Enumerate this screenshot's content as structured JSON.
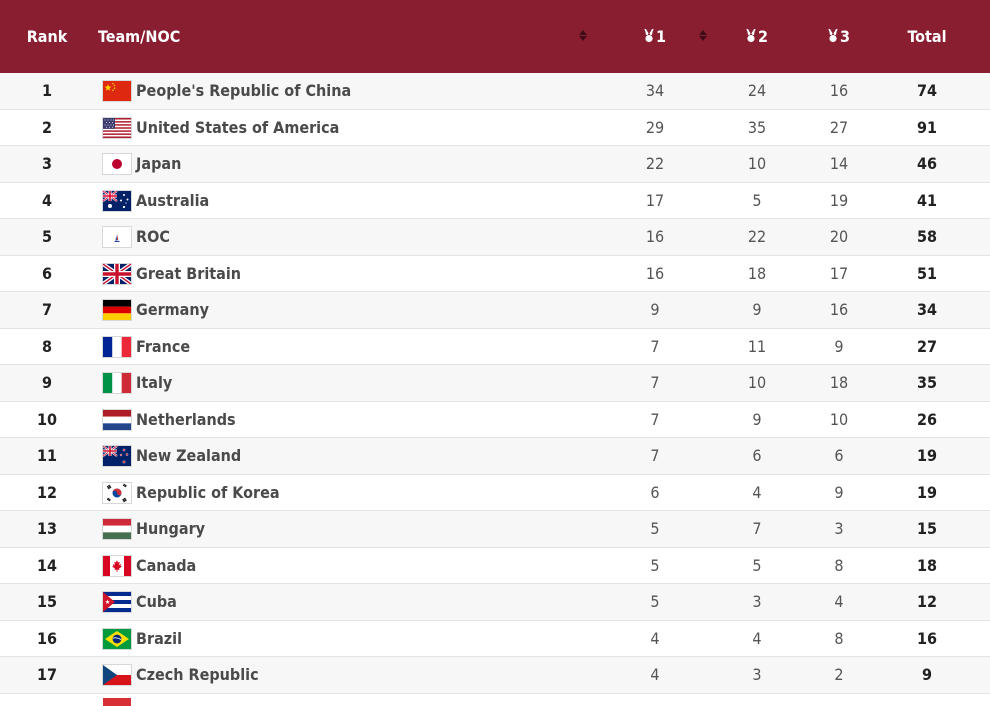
{
  "header": {
    "rank": "Rank",
    "team": "Team/NOC",
    "gold": "1",
    "silver": "2",
    "bronze": "3",
    "total": "Total"
  },
  "rows": [
    {
      "rank": "1",
      "name": "People's Republic of China",
      "gold": "34",
      "silver": "24",
      "bronze": "16",
      "total": "74",
      "flag": "china-flag-icon"
    },
    {
      "rank": "2",
      "name": "United States of America",
      "gold": "29",
      "silver": "35",
      "bronze": "27",
      "total": "91",
      "flag": "usa-flag-icon"
    },
    {
      "rank": "3",
      "name": "Japan",
      "gold": "22",
      "silver": "10",
      "bronze": "14",
      "total": "46",
      "flag": "japan-flag-icon"
    },
    {
      "rank": "4",
      "name": "Australia",
      "gold": "17",
      "silver": "5",
      "bronze": "19",
      "total": "41",
      "flag": "australia-flag-icon"
    },
    {
      "rank": "5",
      "name": "ROC",
      "gold": "16",
      "silver": "22",
      "bronze": "20",
      "total": "58",
      "flag": "roc-flag-icon"
    },
    {
      "rank": "6",
      "name": "Great Britain",
      "gold": "16",
      "silver": "18",
      "bronze": "17",
      "total": "51",
      "flag": "great-britain-flag-icon"
    },
    {
      "rank": "7",
      "name": "Germany",
      "gold": "9",
      "silver": "9",
      "bronze": "16",
      "total": "34",
      "flag": "germany-flag-icon"
    },
    {
      "rank": "8",
      "name": "France",
      "gold": "7",
      "silver": "11",
      "bronze": "9",
      "total": "27",
      "flag": "france-flag-icon"
    },
    {
      "rank": "9",
      "name": "Italy",
      "gold": "7",
      "silver": "10",
      "bronze": "18",
      "total": "35",
      "flag": "italy-flag-icon"
    },
    {
      "rank": "10",
      "name": "Netherlands",
      "gold": "7",
      "silver": "9",
      "bronze": "10",
      "total": "26",
      "flag": "netherlands-flag-icon"
    },
    {
      "rank": "11",
      "name": "New Zealand",
      "gold": "7",
      "silver": "6",
      "bronze": "6",
      "total": "19",
      "flag": "new-zealand-flag-icon"
    },
    {
      "rank": "12",
      "name": "Republic of Korea",
      "gold": "6",
      "silver": "4",
      "bronze": "9",
      "total": "19",
      "flag": "korea-flag-icon"
    },
    {
      "rank": "13",
      "name": "Hungary",
      "gold": "5",
      "silver": "7",
      "bronze": "3",
      "total": "15",
      "flag": "hungary-flag-icon"
    },
    {
      "rank": "14",
      "name": "Canada",
      "gold": "5",
      "silver": "5",
      "bronze": "8",
      "total": "18",
      "flag": "canada-flag-icon"
    },
    {
      "rank": "15",
      "name": "Cuba",
      "gold": "5",
      "silver": "3",
      "bronze": "4",
      "total": "12",
      "flag": "cuba-flag-icon"
    },
    {
      "rank": "16",
      "name": "Brazil",
      "gold": "4",
      "silver": "4",
      "bronze": "8",
      "total": "16",
      "flag": "brazil-flag-icon"
    },
    {
      "rank": "17",
      "name": "Czech Republic",
      "gold": "4",
      "silver": "3",
      "bronze": "2",
      "total": "9",
      "flag": "czech-republic-flag-icon"
    }
  ],
  "colors": {
    "header_bg": "#8a1e31",
    "header_text": "#ffffff",
    "row_alt": "#f7f7f7"
  }
}
